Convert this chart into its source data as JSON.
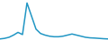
{
  "x": [
    0,
    1,
    2,
    3,
    4,
    5,
    6,
    7,
    8,
    9,
    10,
    11,
    12,
    13,
    14,
    15,
    16,
    17,
    18,
    19,
    20,
    21,
    22,
    23,
    24
  ],
  "y": [
    1.0,
    1.5,
    2.5,
    4.5,
    7.0,
    5.0,
    34.0,
    22.0,
    10.0,
    6.0,
    4.5,
    3.5,
    3.0,
    3.0,
    3.5,
    4.5,
    5.5,
    4.5,
    3.5,
    2.5,
    2.0,
    1.8,
    1.5,
    1.2,
    1.0
  ],
  "line_color": "#2196c4",
  "bg_color": "#ffffff",
  "linewidth": 1.1
}
